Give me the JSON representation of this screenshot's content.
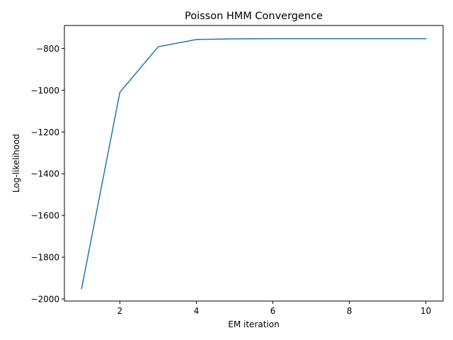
{
  "chart_data": {
    "type": "line",
    "title": "Poisson HMM Convergence",
    "xlabel": "EM iteration",
    "ylabel": "Log-likelihood",
    "xlim": [
      0.55,
      10.45
    ],
    "ylim": [
      -2010,
      -690
    ],
    "xticks": [
      2,
      4,
      6,
      8,
      10
    ],
    "xtick_labels": [
      "2",
      "4",
      "6",
      "8",
      "10"
    ],
    "yticks": [
      -2000,
      -1800,
      -1600,
      -1400,
      -1200,
      -1000,
      -800
    ],
    "ytick_labels": [
      "−2000",
      "−1800",
      "−1600",
      "−1400",
      "−1200",
      "−1000",
      "−800"
    ],
    "grid": false,
    "legend": "none",
    "series": [
      {
        "color": "#1f77b4",
        "x": [
          1,
          2,
          3,
          4,
          5,
          6,
          7,
          8,
          9,
          10
        ],
        "y": [
          -1950,
          -1010,
          -792,
          -757,
          -754,
          -753,
          -753,
          -753,
          -753,
          -753
        ]
      }
    ]
  }
}
